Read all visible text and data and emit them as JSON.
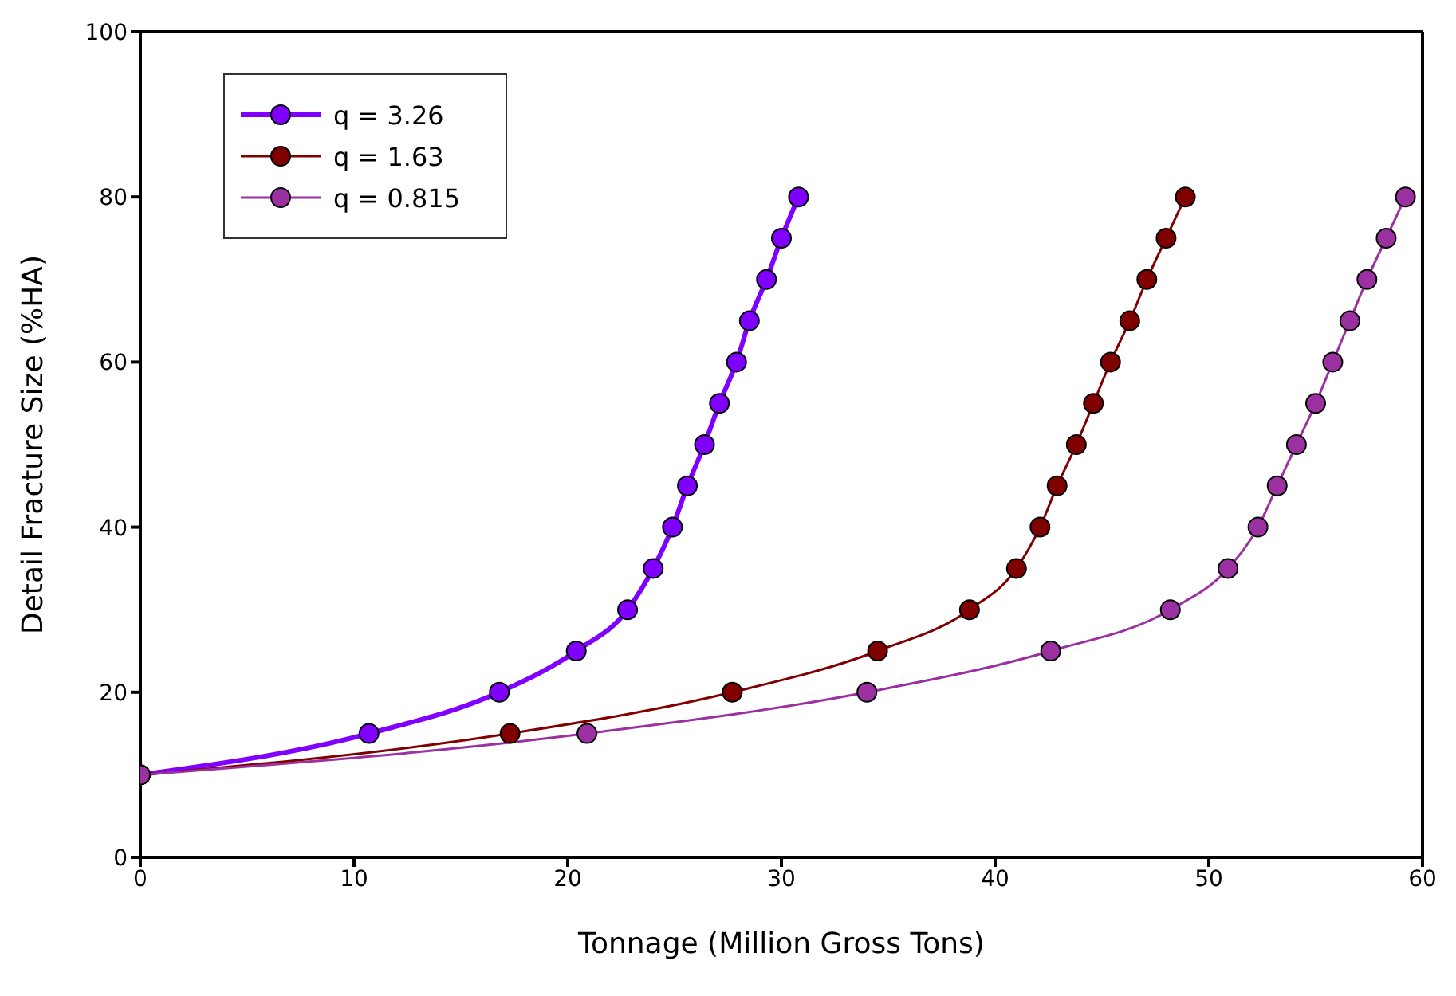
{
  "chart_data": {
    "type": "line",
    "xlabel": "Tonnage (Million Gross Tons)",
    "ylabel": "Detail Fracture Size (%HA)",
    "xlim": [
      0,
      60
    ],
    "xticks": [
      0,
      10,
      20,
      30,
      40,
      50,
      60
    ],
    "ylim": [
      0,
      100
    ],
    "yticks": [
      0,
      20,
      40,
      60,
      80,
      100
    ],
    "grid": false,
    "legend": "top left",
    "marker": "circle",
    "line_style": "solid",
    "series": [
      {
        "name": "q = 3.26",
        "color": "#7f00ff",
        "x": [
          0,
          10.7,
          16.8,
          20.4,
          22.8,
          24.0,
          24.9,
          25.6,
          26.4,
          27.1,
          27.9,
          28.5,
          29.3,
          30.0,
          30.8
        ],
        "values": [
          10,
          15,
          20,
          25,
          30,
          35,
          40,
          45,
          50,
          55,
          60,
          65,
          70,
          75,
          80
        ]
      },
      {
        "name": "q = 1.63",
        "color": "#800000",
        "x": [
          0,
          17.3,
          27.7,
          34.5,
          38.8,
          41.0,
          42.1,
          42.9,
          43.8,
          44.6,
          45.4,
          46.3,
          47.1,
          48.0,
          48.9
        ],
        "values": [
          10,
          15,
          20,
          25,
          30,
          35,
          40,
          45,
          50,
          55,
          60,
          65,
          70,
          75,
          80
        ]
      },
      {
        "name": "q = 0.815",
        "color": "#9b30a0",
        "x": [
          0,
          20.9,
          34.0,
          42.6,
          48.2,
          50.9,
          52.3,
          53.2,
          54.1,
          55.0,
          55.8,
          56.6,
          57.4,
          58.3,
          59.2
        ],
        "values": [
          10,
          15,
          20,
          25,
          30,
          35,
          40,
          45,
          50,
          55,
          60,
          65,
          70,
          75,
          80
        ]
      }
    ]
  }
}
